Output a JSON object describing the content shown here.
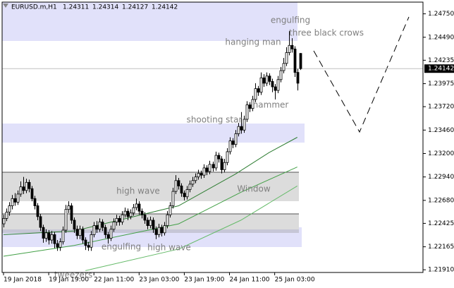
{
  "chart_data": {
    "type": "candlestick",
    "symbol": "EURUSD.m,H1",
    "open": [
      1.2242,
      1.2248,
      1.2255,
      1.2262,
      1.227,
      1.2266,
      1.2275,
      1.2283,
      1.2279,
      1.2288,
      1.2281,
      1.227,
      1.2262,
      1.225,
      1.2238,
      1.2226,
      1.2232,
      1.2224,
      1.223,
      1.222,
      1.2216,
      1.2222,
      1.2235,
      1.2258,
      1.2262,
      1.2246,
      1.2236,
      1.2229,
      1.2236,
      1.2224,
      1.2218,
      1.2216,
      1.223,
      1.224,
      1.2236,
      1.2244,
      1.2238,
      1.223,
      1.2226,
      1.2236,
      1.2244,
      1.2248,
      1.2244,
      1.2252,
      1.2256,
      1.225,
      1.2254,
      1.226,
      1.2264,
      1.2256,
      1.2252,
      1.2246,
      1.224,
      1.2246,
      1.2236,
      1.223,
      1.2238,
      1.2232,
      1.224,
      1.2252,
      1.2262,
      1.2278,
      1.229,
      1.2284,
      1.2276,
      1.2272,
      1.228,
      1.2286,
      1.229,
      1.2294,
      1.2298,
      1.2296,
      1.2304,
      1.23,
      1.2308,
      1.2304,
      1.2318,
      1.2314,
      1.2302,
      1.231,
      1.2322,
      1.2334,
      1.233,
      1.2342,
      1.235,
      1.2346,
      1.2358,
      1.2374,
      1.237,
      1.238,
      1.2392,
      1.2388,
      1.2404,
      1.2398,
      1.2406,
      1.24,
      1.2394,
      1.239,
      1.2402,
      1.2412,
      1.242,
      1.2432,
      1.244,
      1.2436,
      1.241,
      1.24311
    ],
    "high": [
      1.2252,
      1.2259,
      1.2266,
      1.2274,
      1.2276,
      1.2279,
      1.2289,
      1.2294,
      1.2292,
      1.2291,
      1.2284,
      1.2273,
      1.2265,
      1.2253,
      1.2241,
      1.2236,
      1.2235,
      1.2234,
      1.2233,
      1.2224,
      1.2226,
      1.2239,
      1.2263,
      1.2267,
      1.2265,
      1.2249,
      1.224,
      1.224,
      1.2239,
      1.2227,
      1.2222,
      1.2234,
      1.2244,
      1.2245,
      1.2248,
      1.2247,
      1.2241,
      1.2233,
      1.224,
      1.2248,
      1.2252,
      1.2251,
      1.2256,
      1.226,
      1.2259,
      1.2258,
      1.2264,
      1.227,
      1.2267,
      1.2259,
      1.2255,
      1.2249,
      1.225,
      1.2249,
      1.2239,
      1.2242,
      1.2241,
      1.2244,
      1.2256,
      1.2266,
      1.2282,
      1.2296,
      1.2293,
      1.2287,
      1.2279,
      1.2284,
      1.229,
      1.2294,
      1.2298,
      1.2302,
      1.2301,
      1.2308,
      1.2307,
      1.2312,
      1.2311,
      1.2322,
      1.2321,
      1.2317,
      1.2314,
      1.2326,
      1.2338,
      1.2337,
      1.2346,
      1.2354,
      1.2366,
      1.2362,
      1.2378,
      1.2377,
      1.2384,
      1.2398,
      1.2395,
      1.241,
      1.2408,
      1.241,
      1.2409,
      1.2403,
      1.2397,
      1.2406,
      1.2416,
      1.2426,
      1.2438,
      1.2456,
      1.2448,
      1.2439,
      1.2414,
      1.24314
    ],
    "low": [
      1.2238,
      1.2245,
      1.2251,
      1.2258,
      1.2262,
      1.2263,
      1.2272,
      1.2275,
      1.2276,
      1.2277,
      1.2267,
      1.2258,
      1.2246,
      1.2234,
      1.2221,
      1.2222,
      1.2219,
      1.222,
      1.2215,
      1.2212,
      1.2212,
      1.2219,
      1.2232,
      1.2254,
      1.2242,
      1.2232,
      1.2225,
      1.2225,
      1.222,
      1.2213,
      1.2212,
      1.2212,
      1.2227,
      1.2232,
      1.2233,
      1.2234,
      1.2226,
      1.222,
      1.2223,
      1.2233,
      1.224,
      1.224,
      1.2241,
      1.2249,
      1.2246,
      1.2247,
      1.2251,
      1.2257,
      1.2252,
      1.2248,
      1.2242,
      1.2236,
      1.2237,
      1.2232,
      1.2225,
      1.2227,
      1.2228,
      1.2229,
      1.2237,
      1.2249,
      1.2259,
      1.2275,
      1.228,
      1.2272,
      1.2268,
      1.2269,
      1.2277,
      1.2283,
      1.2287,
      1.2291,
      1.2292,
      1.2293,
      1.2296,
      1.2297,
      1.23,
      1.2301,
      1.231,
      1.2298,
      1.2299,
      1.2307,
      1.2319,
      1.2326,
      1.2327,
      1.2339,
      1.2342,
      1.2343,
      1.2355,
      1.2366,
      1.2367,
      1.2377,
      1.2384,
      1.2385,
      1.2394,
      1.2395,
      1.2396,
      1.2388,
      1.238,
      1.2387,
      1.2399,
      1.2409,
      1.2417,
      1.2429,
      1.2432,
      1.2405,
      1.239,
      1.24127
    ],
    "close": [
      1.2248,
      1.2255,
      1.2262,
      1.227,
      1.2266,
      1.2275,
      1.2283,
      1.2279,
      1.2288,
      1.2281,
      1.227,
      1.2262,
      1.225,
      1.2238,
      1.2226,
      1.2232,
      1.2224,
      1.223,
      1.222,
      1.2216,
      1.2222,
      1.2235,
      1.2258,
      1.2262,
      1.2246,
      1.2236,
      1.2229,
      1.2236,
      1.2224,
      1.2218,
      1.2216,
      1.223,
      1.224,
      1.2236,
      1.2244,
      1.2238,
      1.223,
      1.2226,
      1.2236,
      1.2244,
      1.2248,
      1.2244,
      1.2252,
      1.2256,
      1.225,
      1.2254,
      1.226,
      1.2264,
      1.2256,
      1.2252,
      1.2246,
      1.224,
      1.2246,
      1.2236,
      1.223,
      1.2238,
      1.2232,
      1.224,
      1.2252,
      1.2262,
      1.2278,
      1.229,
      1.2284,
      1.2276,
      1.2272,
      1.228,
      1.2286,
      1.229,
      1.2294,
      1.2298,
      1.2296,
      1.2304,
      1.23,
      1.2308,
      1.2304,
      1.2318,
      1.2314,
      1.2302,
      1.231,
      1.2322,
      1.2334,
      1.233,
      1.2342,
      1.235,
      1.2346,
      1.2358,
      1.2374,
      1.237,
      1.238,
      1.2392,
      1.2388,
      1.2404,
      1.2398,
      1.2406,
      1.24,
      1.2394,
      1.239,
      1.2402,
      1.2412,
      1.242,
      1.2432,
      1.244,
      1.2436,
      1.241,
      1.2398,
      1.24142
    ],
    "xlim": [
      -0.5,
      148.5
    ],
    "xticks": [
      {
        "value": 0,
        "label": "19 Jan 2018"
      },
      {
        "value": 16,
        "label": "19 Jan 19:00"
      },
      {
        "value": 32,
        "label": "22 Jan 11:00"
      },
      {
        "value": 48,
        "label": "23 Jan 03:00"
      },
      {
        "value": 64,
        "label": "23 Jan 19:00"
      },
      {
        "value": 80,
        "label": "24 Jan 11:00"
      },
      {
        "value": 96,
        "label": "25 Jan 03:00"
      }
    ],
    "ylim": [
      1.2188,
      1.2488
    ],
    "yticks": [
      {
        "value": 1.2475,
        "label": "1.24750"
      },
      {
        "value": 1.2449,
        "label": "1.24490"
      },
      {
        "value": 1.24235,
        "label": "1.24235"
      },
      {
        "value": 1.23975,
        "label": "1.23975"
      },
      {
        "value": 1.2372,
        "label": "1.23720"
      },
      {
        "value": 1.2346,
        "label": "1.23460"
      },
      {
        "value": 1.232,
        "label": "1.23200"
      },
      {
        "value": 1.2294,
        "label": "1.22940"
      },
      {
        "value": 1.2268,
        "label": "1.22680"
      },
      {
        "value": 1.22425,
        "label": "1.22425"
      },
      {
        "value": 1.22165,
        "label": "1.22165"
      },
      {
        "value": 1.2191,
        "label": "1.21910"
      }
    ],
    "moving_averages": [
      {
        "color": "#2e7d32",
        "x": [
          0,
          25,
          62,
          82,
          94,
          104
        ],
        "values": [
          1.223,
          1.2234,
          1.2262,
          1.2297,
          1.2321,
          1.2338
        ]
      },
      {
        "color": "#43a047",
        "x": [
          0,
          25,
          62,
          84,
          104
        ],
        "values": [
          1.2206,
          1.2218,
          1.2242,
          1.2277,
          1.2305
        ]
      },
      {
        "color": "#66bb6a",
        "x": [
          29,
          62,
          84,
          104
        ],
        "values": [
          1.219,
          1.2214,
          1.2246,
          1.2284
        ]
      }
    ],
    "annotations": [
      "engulfing",
      "three black crows",
      "hanging man",
      "hammer",
      "shooting star",
      "Window",
      "high wave",
      "engulfing",
      "high wave",
      "tweezers"
    ],
    "bull_color": "#ffffff",
    "bear_color": "#000000"
  }
}
